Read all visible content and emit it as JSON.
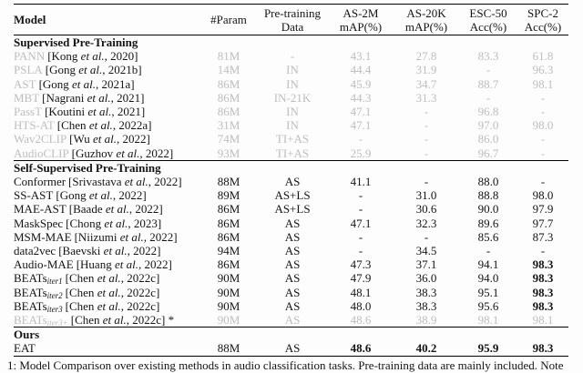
{
  "table": {
    "columns": [
      {
        "key": "model",
        "line1": "Model",
        "line2": ""
      },
      {
        "key": "param",
        "line1": "#Param",
        "line2": ""
      },
      {
        "key": "data",
        "line1": "Pre-training",
        "line2": "Data"
      },
      {
        "key": "as2m",
        "line1": "AS-2M",
        "line2": "mAP(%)"
      },
      {
        "key": "as20k",
        "line1": "AS-20K",
        "line2": "mAP(%)"
      },
      {
        "key": "esc50",
        "line1": "ESC-50",
        "line2": "Acc(%)"
      },
      {
        "key": "spc2",
        "line1": "SPC-2",
        "line2": "Acc(%)"
      }
    ],
    "sections": [
      {
        "title": "Supervised Pre-Training",
        "rows": [
          {
            "name": "PANN",
            "sub": "",
            "cite_pre": "[Kong ",
            "etal": "et al.",
            "cite_post": ", 2020]",
            "star": "",
            "gray": true,
            "param": "81M",
            "data": "-",
            "as2m": "43.1",
            "as20k": "27.8",
            "esc50": "83.3",
            "spc2": "61.8",
            "bold": []
          },
          {
            "name": "PSLA",
            "sub": "",
            "cite_pre": "[Gong ",
            "etal": "et al.",
            "cite_post": ", 2021b]",
            "star": "",
            "gray": true,
            "param": "14M",
            "data": "IN",
            "as2m": "44.4",
            "as20k": "31.9",
            "esc50": "-",
            "spc2": "96.3",
            "bold": []
          },
          {
            "name": "AST",
            "sub": "",
            "cite_pre": "[Gong ",
            "etal": "et al.",
            "cite_post": ", 2021a]",
            "star": "",
            "gray": true,
            "param": "86M",
            "data": "IN",
            "as2m": "45.9",
            "as20k": "34.7",
            "esc50": "88.7",
            "spc2": "98.1",
            "bold": []
          },
          {
            "name": "MBT",
            "sub": "",
            "cite_pre": "[Nagrani ",
            "etal": "et al.",
            "cite_post": ", 2021]",
            "star": "",
            "gray": true,
            "param": "86M",
            "data": "IN-21K",
            "as2m": "44.3",
            "as20k": "31.3",
            "esc50": "-",
            "spc2": "-",
            "bold": []
          },
          {
            "name": "PassT",
            "sub": "",
            "cite_pre": "[Koutini ",
            "etal": "et al.",
            "cite_post": ", 2021]",
            "star": "",
            "gray": true,
            "param": "86M",
            "data": "IN",
            "as2m": "47.1",
            "as20k": "-",
            "esc50": "96.8",
            "spc2": "-",
            "bold": []
          },
          {
            "name": "HTS-AT",
            "sub": "",
            "cite_pre": "[Chen ",
            "etal": "et al.",
            "cite_post": ", 2022a]",
            "star": "",
            "gray": true,
            "param": "31M",
            "data": "IN",
            "as2m": "47.1",
            "as20k": "-",
            "esc50": "97.0",
            "spc2": "98.0",
            "bold": []
          },
          {
            "name": "Wav2CLIP",
            "sub": "",
            "cite_pre": "[Wu ",
            "etal": "et al.",
            "cite_post": ", 2022]",
            "star": "",
            "gray": true,
            "param": "74M",
            "data": "TI+AS",
            "as2m": "-",
            "as20k": "-",
            "esc50": "86.0",
            "spc2": "-",
            "bold": []
          },
          {
            "name": "AudioCLIP",
            "sub": "",
            "cite_pre": "[Guzhov ",
            "etal": "et al.",
            "cite_post": ", 2022]",
            "star": "",
            "gray": true,
            "param": "93M",
            "data": "TI+AS",
            "as2m": "25.9",
            "as20k": "-",
            "esc50": "96.7",
            "spc2": "-",
            "bold": []
          }
        ]
      },
      {
        "title": "Self-Supervised Pre-Training",
        "rows": [
          {
            "name": "Conformer",
            "sub": "",
            "cite_pre": "[Srivastava ",
            "etal": "et al.",
            "cite_post": ", 2022]",
            "star": "",
            "gray": false,
            "param": "88M",
            "data": "AS",
            "as2m": "41.1",
            "as20k": "-",
            "esc50": "88.0",
            "spc2": "-",
            "bold": []
          },
          {
            "name": "SS-AST",
            "sub": "",
            "cite_pre": "[Gong ",
            "etal": "et al.",
            "cite_post": ", 2022]",
            "star": "",
            "gray": false,
            "param": "89M",
            "data": "AS+LS",
            "as2m": "-",
            "as20k": "31.0",
            "esc50": "88.8",
            "spc2": "98.0",
            "bold": []
          },
          {
            "name": "MAE-AST",
            "sub": "",
            "cite_pre": "[Baade ",
            "etal": "et al.",
            "cite_post": ", 2022]",
            "star": "",
            "gray": false,
            "param": "86M",
            "data": "AS+LS",
            "as2m": "-",
            "as20k": "30.6",
            "esc50": "90.0",
            "spc2": "97.9",
            "bold": []
          },
          {
            "name": "MaskSpec",
            "sub": "",
            "cite_pre": "[Chong ",
            "etal": "et al.",
            "cite_post": ", 2023]",
            "star": "",
            "gray": false,
            "param": "86M",
            "data": "AS",
            "as2m": "47.1",
            "as20k": "32.3",
            "esc50": "89.6",
            "spc2": "97.7",
            "bold": []
          },
          {
            "name": "MSM-MAE",
            "sub": "",
            "cite_pre": "[Niizumi ",
            "etal": "et al.",
            "cite_post": ", 2022]",
            "star": "",
            "gray": false,
            "param": "86M",
            "data": "AS",
            "as2m": "-",
            "as20k": "-",
            "esc50": "85.6",
            "spc2": "87.3",
            "bold": []
          },
          {
            "name": "data2vec",
            "sub": "",
            "cite_pre": "[Baevski ",
            "etal": "et al.",
            "cite_post": ", 2022]",
            "star": "",
            "gray": false,
            "param": "94M",
            "data": "AS",
            "as2m": "-",
            "as20k": "34.5",
            "esc50": "-",
            "spc2": "-",
            "bold": []
          },
          {
            "name": "Audio-MAE",
            "sub": "",
            "cite_pre": "[Huang ",
            "etal": "et al.",
            "cite_post": ", 2022]",
            "star": "",
            "gray": false,
            "param": "86M",
            "data": "AS",
            "as2m": "47.3",
            "as20k": "37.1",
            "esc50": "94.1",
            "spc2": "98.3",
            "bold": [
              "spc2"
            ]
          },
          {
            "name": "BEATs",
            "sub": "iter1",
            "cite_pre": "[Chen ",
            "etal": "et al.",
            "cite_post": ", 2022c]",
            "star": "",
            "gray": false,
            "param": "90M",
            "data": "AS",
            "as2m": "47.9",
            "as20k": "36.0",
            "esc50": "94.0",
            "spc2": "98.3",
            "bold": [
              "spc2"
            ]
          },
          {
            "name": "BEATs",
            "sub": "iter2",
            "cite_pre": "[Chen ",
            "etal": "et al.",
            "cite_post": ", 2022c]",
            "star": "",
            "gray": false,
            "param": "90M",
            "data": "AS",
            "as2m": "48.1",
            "as20k": "38.3",
            "esc50": "95.1",
            "spc2": "98.3",
            "bold": [
              "spc2"
            ]
          },
          {
            "name": "BEATs",
            "sub": "iter3",
            "cite_pre": "[Chen ",
            "etal": "et al.",
            "cite_post": ", 2022c]",
            "star": "",
            "gray": false,
            "param": "90M",
            "data": "AS",
            "as2m": "48.0",
            "as20k": "38.3",
            "esc50": "95.6",
            "spc2": "98.3",
            "bold": [
              "spc2"
            ]
          },
          {
            "name": "BEATs",
            "sub": "iter3+",
            "cite_pre": "[Chen ",
            "etal": "et al.",
            "cite_post": ", 2022c]",
            "star": " *",
            "gray": true,
            "param": "90M",
            "data": "AS",
            "as2m": "48.6",
            "as20k": "38.9",
            "esc50": "98.1",
            "spc2": "98.1",
            "bold": []
          }
        ]
      },
      {
        "title": "Ours",
        "rows": [
          {
            "name": "EAT",
            "sub": "",
            "cite_pre": "",
            "etal": "",
            "cite_post": "",
            "star": "",
            "gray": false,
            "param": "88M",
            "data": "AS",
            "as2m": "48.6",
            "as20k": "40.2",
            "esc50": "95.9",
            "spc2": "98.3",
            "bold": [
              "as2m",
              "as20k",
              "esc50",
              "spc2"
            ]
          }
        ]
      }
    ]
  },
  "caption": {
    "text": "1: Model Comparison over existing methods in audio classification tasks. Pre-training data are mainly included. Note"
  },
  "colors": {
    "muted_text": "#bdbdbd",
    "text": "#141414",
    "rule": "#000000"
  }
}
